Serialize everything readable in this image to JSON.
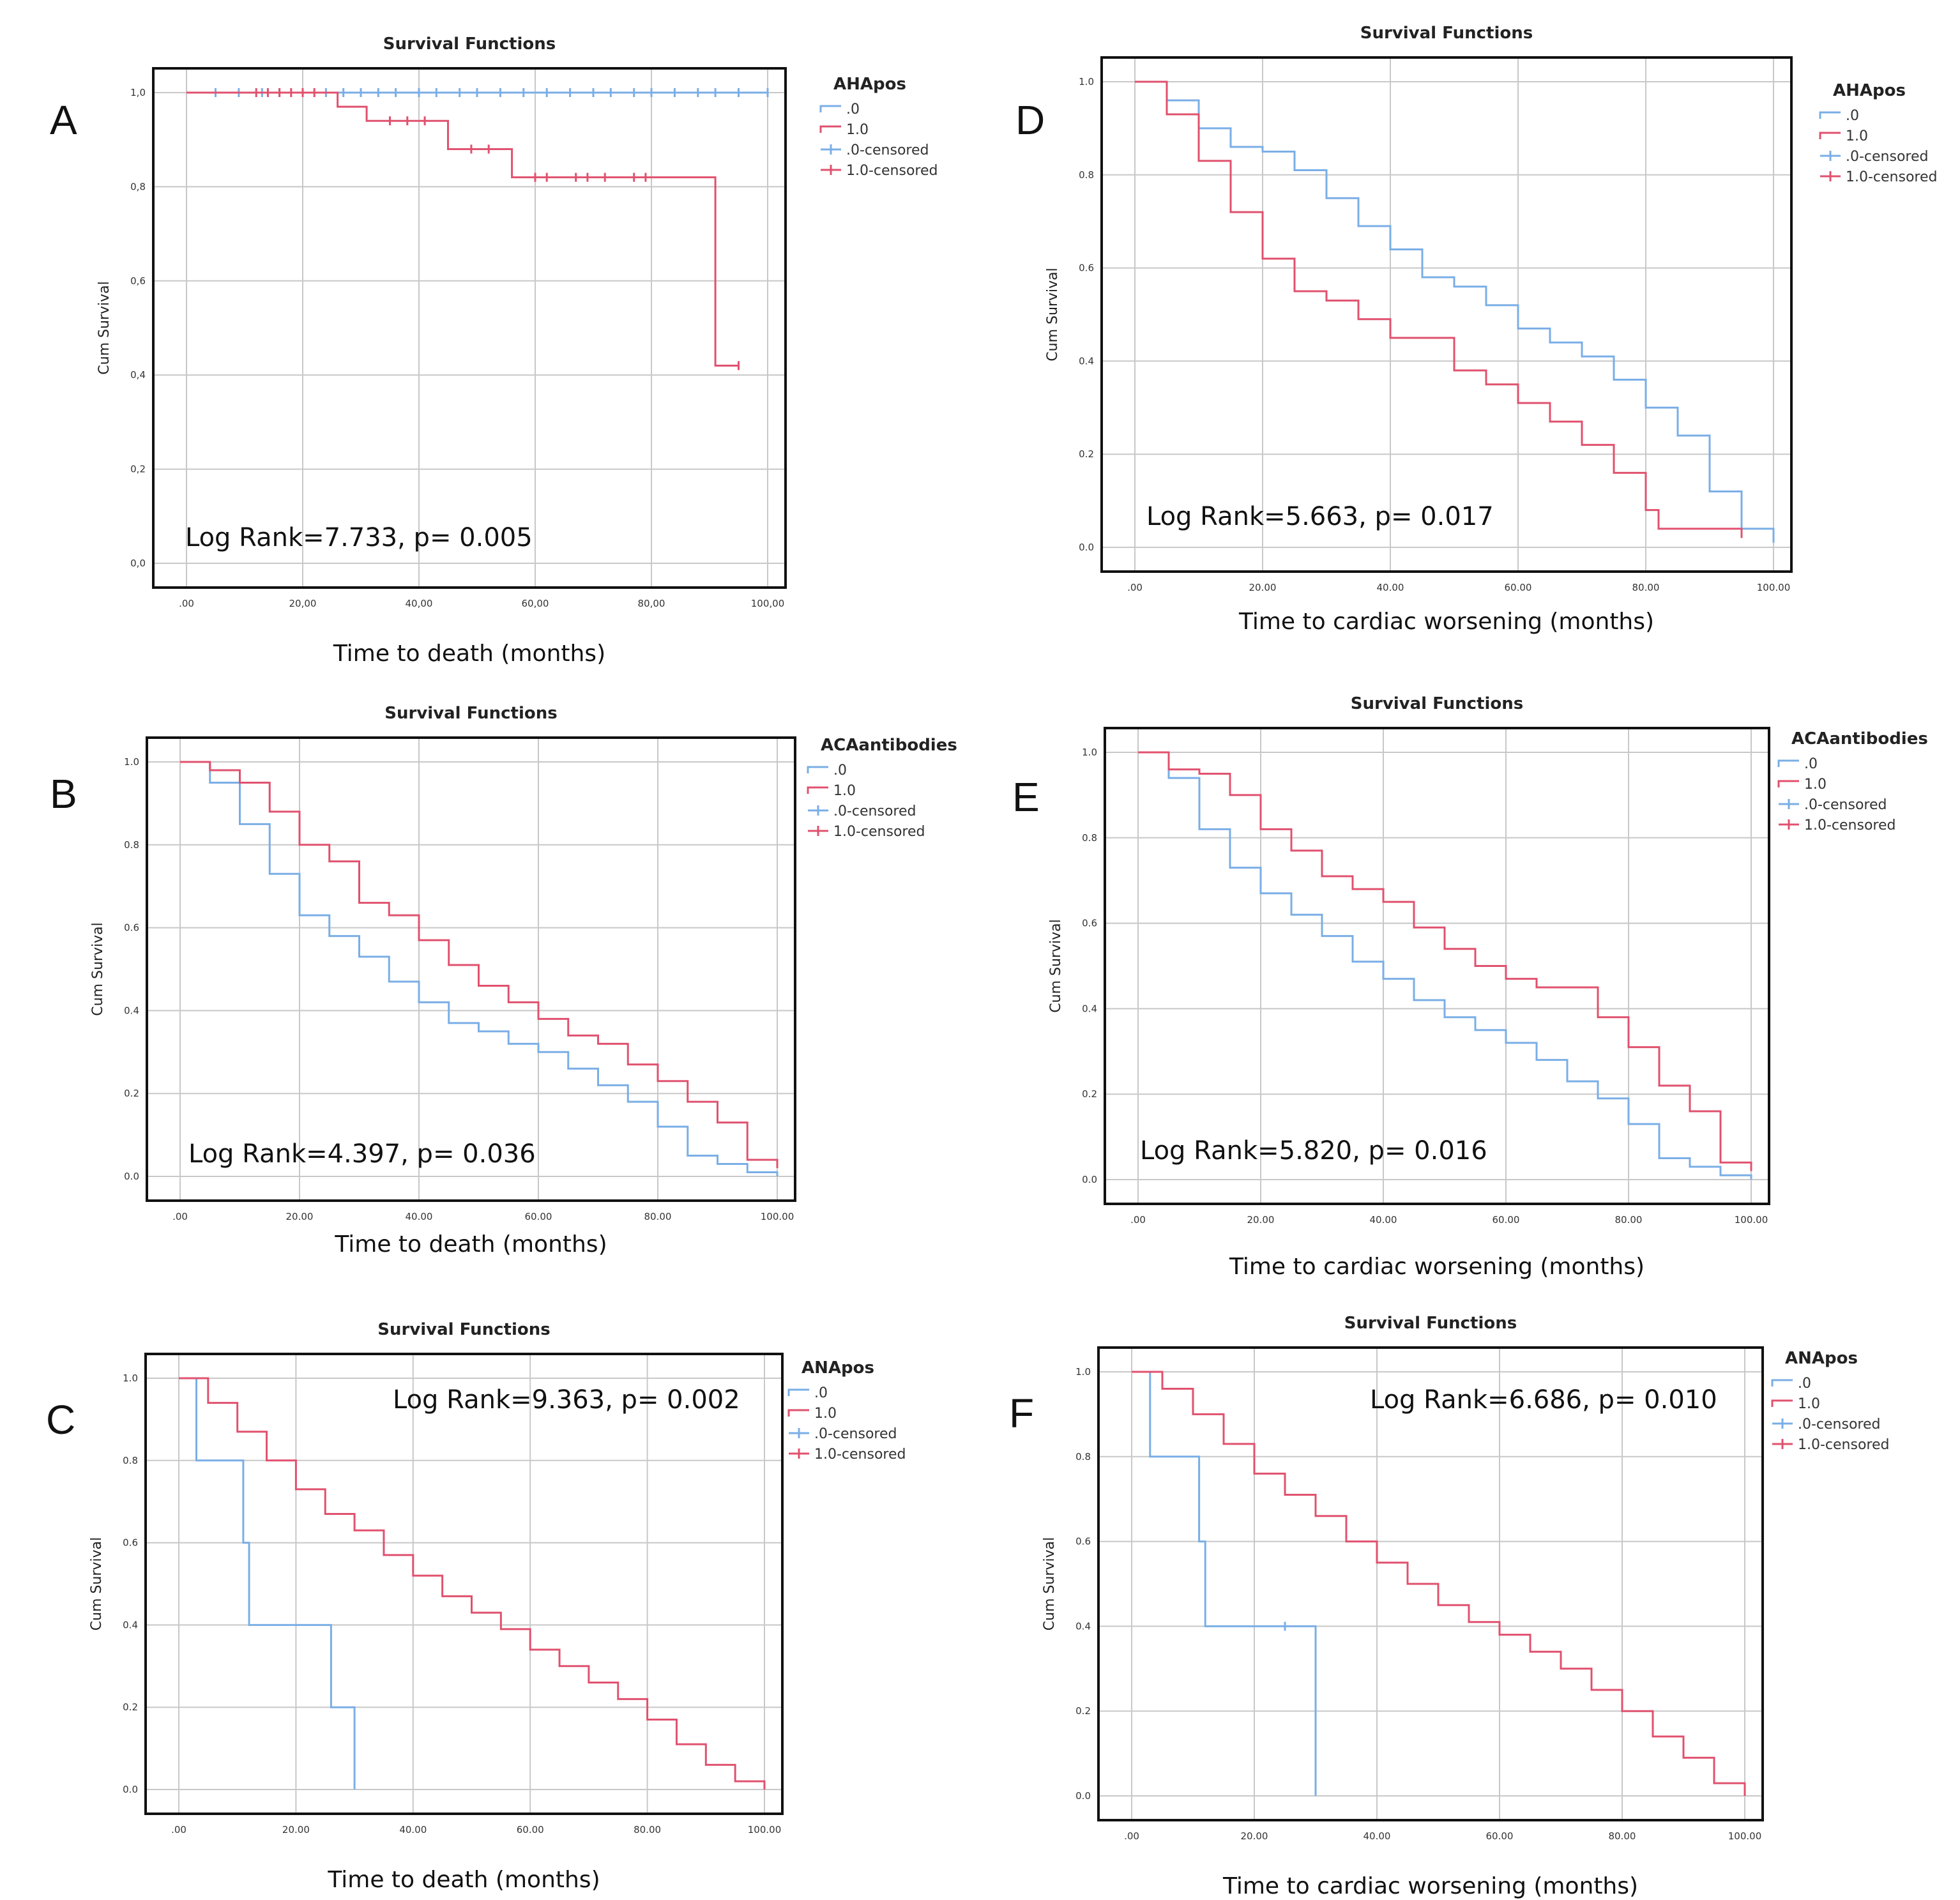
{
  "colors": {
    "series0": "#7aaee6",
    "series1": "#e0516e",
    "grid": "#c8c8c8",
    "frame": "#111111"
  },
  "chart_data": [
    {
      "panel": "A",
      "type": "line",
      "title": "Survival Functions",
      "xlabel": "Time to death (months)",
      "ylabel": "Cum Survival",
      "xlim": [
        0,
        100
      ],
      "ylim": [
        0,
        1.0
      ],
      "xticks": [
        ".00",
        "20,00",
        "40,00",
        "60,00",
        "80,00",
        "100,00"
      ],
      "yticks": [
        "0,0",
        "0,2",
        "0,4",
        "0,6",
        "0,8",
        "1,0"
      ],
      "legend_title": "AHApos",
      "legend": [
        ".0",
        "1.0",
        ".0-censored",
        "1.0-censored"
      ],
      "annotation": "Log Rank=7.733, p= 0.005",
      "series": [
        {
          "name": ".0",
          "x": [
            0,
            100
          ],
          "y": [
            1.0,
            1.0
          ],
          "censored_x": [
            5,
            9,
            13,
            16,
            20,
            24,
            27,
            30,
            33,
            36,
            40,
            43,
            47,
            50,
            54,
            58,
            62,
            66,
            70,
            73,
            77,
            80,
            84,
            88,
            91,
            95,
            100
          ]
        },
        {
          "name": "1.0",
          "x": [
            0,
            25,
            26,
            30,
            31,
            44,
            45,
            55,
            56,
            90,
            91,
            95
          ],
          "y": [
            1.0,
            1.0,
            0.97,
            0.97,
            0.94,
            0.94,
            0.88,
            0.88,
            0.82,
            0.82,
            0.42,
            0.42
          ],
          "censored_x": [
            12,
            14,
            16,
            18,
            20,
            22,
            35,
            38,
            41,
            49,
            52,
            60,
            62,
            67,
            69,
            72,
            77,
            79,
            95
          ]
        }
      ]
    },
    {
      "panel": "B",
      "type": "line",
      "title": "Survival Functions",
      "xlabel": "Time to death (months)",
      "ylabel": "Cum Survival",
      "xlim": [
        0,
        100
      ],
      "ylim": [
        0,
        1.0
      ],
      "xticks": [
        ".00",
        "20.00",
        "40.00",
        "60.00",
        "80.00",
        "100.00"
      ],
      "yticks": [
        "0.0",
        "0.2",
        "0.4",
        "0.6",
        "0.8",
        "1.0"
      ],
      "legend_title": "ACAantibodies",
      "legend": [
        ".0",
        "1.0",
        ".0-censored",
        "1.0-censored"
      ],
      "annotation": "Log Rank=4.397, p= 0.036",
      "series": [
        {
          "name": ".0",
          "x": [
            0,
            5,
            10,
            15,
            20,
            25,
            30,
            35,
            40,
            45,
            50,
            55,
            60,
            65,
            70,
            75,
            80,
            85,
            90,
            95,
            100
          ],
          "y": [
            1.0,
            0.95,
            0.85,
            0.73,
            0.63,
            0.58,
            0.53,
            0.47,
            0.42,
            0.37,
            0.35,
            0.32,
            0.3,
            0.26,
            0.22,
            0.18,
            0.12,
            0.05,
            0.03,
            0.01,
            0.0
          ],
          "censored_x": []
        },
        {
          "name": "1.0",
          "x": [
            0,
            5,
            10,
            15,
            20,
            25,
            30,
            35,
            40,
            45,
            50,
            55,
            60,
            65,
            70,
            75,
            80,
            85,
            90,
            95,
            100
          ],
          "y": [
            1.0,
            0.98,
            0.95,
            0.88,
            0.8,
            0.76,
            0.66,
            0.63,
            0.57,
            0.51,
            0.46,
            0.42,
            0.38,
            0.34,
            0.32,
            0.27,
            0.23,
            0.18,
            0.13,
            0.04,
            0.02
          ],
          "censored_x": []
        }
      ]
    },
    {
      "panel": "C",
      "type": "line",
      "title": "Survival Functions",
      "xlabel": "Time to death (months)",
      "ylabel": "Cum Survival",
      "xlim": [
        0,
        100
      ],
      "ylim": [
        0,
        1.0
      ],
      "xticks": [
        ".00",
        "20.00",
        "40.00",
        "60.00",
        "80.00",
        "100.00"
      ],
      "yticks": [
        "0.0",
        "0.2",
        "0.4",
        "0.6",
        "0.8",
        "1.0"
      ],
      "legend_title": "ANApos",
      "legend": [
        ".0",
        "1.0",
        ".0-censored",
        "1.0-censored"
      ],
      "annotation": "Log Rank=9.363, p= 0.002",
      "series": [
        {
          "name": ".0",
          "x": [
            0,
            3,
            3,
            11,
            11,
            12,
            12,
            26,
            26,
            30,
            30
          ],
          "y": [
            1.0,
            1.0,
            0.8,
            0.8,
            0.6,
            0.6,
            0.4,
            0.4,
            0.2,
            0.2,
            0.0
          ],
          "censored_x": []
        },
        {
          "name": "1.0",
          "x": [
            0,
            5,
            10,
            15,
            20,
            25,
            30,
            35,
            40,
            45,
            50,
            55,
            60,
            65,
            70,
            75,
            80,
            85,
            90,
            95,
            100
          ],
          "y": [
            1.0,
            0.94,
            0.87,
            0.8,
            0.73,
            0.67,
            0.63,
            0.57,
            0.52,
            0.47,
            0.43,
            0.39,
            0.34,
            0.3,
            0.26,
            0.22,
            0.17,
            0.11,
            0.06,
            0.02,
            0.0
          ],
          "censored_x": []
        }
      ]
    },
    {
      "panel": "D",
      "type": "line",
      "title": "Survival Functions",
      "xlabel": "Time to cardiac worsening (months)",
      "ylabel": "Cum Survival",
      "xlim": [
        0,
        100
      ],
      "ylim": [
        0,
        1.0
      ],
      "xticks": [
        ".00",
        "20.00",
        "40.00",
        "60.00",
        "80.00",
        "100.00"
      ],
      "yticks": [
        "0.0",
        "0.2",
        "0.4",
        "0.6",
        "0.8",
        "1.0"
      ],
      "legend_title": "AHApos",
      "legend": [
        ".0",
        "1.0",
        ".0-censored",
        "1.0-censored"
      ],
      "annotation": "Log Rank=5.663, p= 0.017",
      "series": [
        {
          "name": ".0",
          "x": [
            0,
            5,
            10,
            15,
            20,
            25,
            30,
            35,
            40,
            45,
            50,
            55,
            60,
            65,
            70,
            75,
            80,
            85,
            90,
            95,
            100
          ],
          "y": [
            1.0,
            0.96,
            0.9,
            0.86,
            0.85,
            0.81,
            0.75,
            0.69,
            0.64,
            0.58,
            0.56,
            0.52,
            0.47,
            0.44,
            0.41,
            0.36,
            0.3,
            0.24,
            0.12,
            0.04,
            0.01
          ],
          "censored_x": []
        },
        {
          "name": "1.0",
          "x": [
            0,
            5,
            10,
            15,
            20,
            25,
            30,
            35,
            40,
            45,
            50,
            55,
            60,
            65,
            70,
            75,
            80,
            82,
            85,
            90,
            95
          ],
          "y": [
            1.0,
            0.93,
            0.83,
            0.72,
            0.62,
            0.55,
            0.53,
            0.49,
            0.45,
            0.45,
            0.38,
            0.35,
            0.31,
            0.27,
            0.22,
            0.16,
            0.08,
            0.04,
            0.04,
            0.04,
            0.02
          ],
          "censored_x": []
        }
      ]
    },
    {
      "panel": "E",
      "type": "line",
      "title": "Survival Functions",
      "xlabel": "Time to cardiac worsening (months)",
      "ylabel": "Cum Survival",
      "xlim": [
        0,
        100
      ],
      "ylim": [
        0,
        1.0
      ],
      "xticks": [
        ".00",
        "20.00",
        "40.00",
        "60.00",
        "80.00",
        "100.00"
      ],
      "yticks": [
        "0.0",
        "0.2",
        "0.4",
        "0.6",
        "0.8",
        "1.0"
      ],
      "legend_title": "ACAantibodies",
      "legend": [
        ".0",
        "1.0",
        ".0-censored",
        "1.0-censored"
      ],
      "annotation": "Log Rank=5.820, p= 0.016",
      "series": [
        {
          "name": ".0",
          "x": [
            0,
            5,
            10,
            15,
            20,
            25,
            30,
            35,
            40,
            45,
            50,
            55,
            60,
            65,
            70,
            75,
            80,
            85,
            90,
            95,
            100
          ],
          "y": [
            1.0,
            0.94,
            0.82,
            0.73,
            0.67,
            0.62,
            0.57,
            0.51,
            0.47,
            0.42,
            0.38,
            0.35,
            0.32,
            0.28,
            0.23,
            0.19,
            0.13,
            0.05,
            0.03,
            0.01,
            0.0
          ],
          "censored_x": []
        },
        {
          "name": "1.0",
          "x": [
            0,
            5,
            10,
            15,
            20,
            25,
            30,
            35,
            40,
            45,
            50,
            55,
            60,
            65,
            70,
            75,
            80,
            85,
            90,
            95,
            100
          ],
          "y": [
            1.0,
            0.96,
            0.95,
            0.9,
            0.82,
            0.77,
            0.71,
            0.68,
            0.65,
            0.59,
            0.54,
            0.5,
            0.47,
            0.45,
            0.45,
            0.38,
            0.31,
            0.22,
            0.16,
            0.04,
            0.02
          ],
          "censored_x": []
        }
      ]
    },
    {
      "panel": "F",
      "type": "line",
      "title": "Survival Functions",
      "xlabel": "Time to cardiac worsening (months)",
      "ylabel": "Cum Survival",
      "xlim": [
        0,
        100
      ],
      "ylim": [
        0,
        1.0
      ],
      "xticks": [
        ".00",
        "20.00",
        "40.00",
        "60.00",
        "80.00",
        "100.00"
      ],
      "yticks": [
        "0.0",
        "0.2",
        "0.4",
        "0.6",
        "0.8",
        "1.0"
      ],
      "legend_title": "ANApos",
      "legend": [
        ".0",
        "1.0",
        ".0-censored",
        "1.0-censored"
      ],
      "annotation": "Log Rank=6.686, p= 0.010",
      "series": [
        {
          "name": ".0",
          "x": [
            0,
            3,
            3,
            11,
            11,
            12,
            12,
            30,
            30
          ],
          "y": [
            1.0,
            1.0,
            0.8,
            0.8,
            0.6,
            0.6,
            0.4,
            0.4,
            0.0
          ],
          "censored_x": [
            25
          ]
        },
        {
          "name": "1.0",
          "x": [
            0,
            5,
            10,
            15,
            20,
            25,
            30,
            35,
            40,
            45,
            50,
            55,
            60,
            65,
            70,
            75,
            80,
            85,
            90,
            95,
            100
          ],
          "y": [
            1.0,
            0.96,
            0.9,
            0.83,
            0.76,
            0.71,
            0.66,
            0.6,
            0.55,
            0.5,
            0.45,
            0.41,
            0.38,
            0.34,
            0.3,
            0.25,
            0.2,
            0.14,
            0.09,
            0.03,
            0.0
          ],
          "censored_x": []
        }
      ]
    }
  ]
}
